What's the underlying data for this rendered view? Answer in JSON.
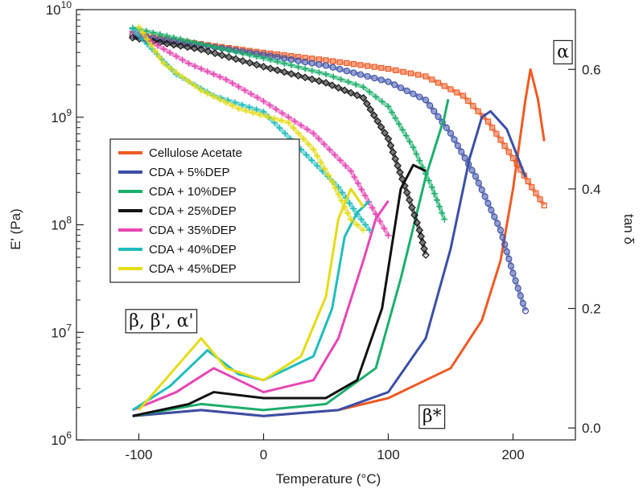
{
  "chart_data": {
    "type": "line",
    "xlabel": "Temperature (°C)",
    "ylabel_left": "E' (Pa)",
    "ylabel_right": "tan δ",
    "xlim": [
      -150,
      250
    ],
    "ylim_left": [
      6,
      10
    ],
    "ylim_right": [
      -0.02,
      0.7
    ],
    "left_scale": "log",
    "grid": false,
    "legend_position": "middle-left",
    "x_ticks": [
      {
        "value": -100,
        "label": "-100"
      },
      {
        "value": 0,
        "label": "0"
      },
      {
        "value": 100,
        "label": "100"
      },
      {
        "value": 200,
        "label": "200"
      }
    ],
    "left_ticks": [
      {
        "exp": 6,
        "base": "10",
        "sup": "6"
      },
      {
        "exp": 7,
        "base": "10",
        "sup": "7"
      },
      {
        "exp": 8,
        "base": "10",
        "sup": "8"
      },
      {
        "exp": 9,
        "base": "10",
        "sup": "9"
      },
      {
        "exp": 10,
        "base": "10",
        "sup": "10"
      }
    ],
    "right_ticks": [
      {
        "value": 0.0,
        "label": "0.0"
      },
      {
        "value": 0.2,
        "label": "0.2"
      },
      {
        "value": 0.4,
        "label": "0.4"
      },
      {
        "value": 0.6,
        "label": "0.6"
      }
    ],
    "series": [
      {
        "name": "Cellulose Acetate",
        "color": "#ee5a24",
        "marker": "square",
        "storage_modulus": [
          [
            -105,
            9.77
          ],
          [
            -50,
            9.68
          ],
          [
            0,
            9.6
          ],
          [
            50,
            9.53
          ],
          [
            100,
            9.45
          ],
          [
            130,
            9.38
          ],
          [
            160,
            9.2
          ],
          [
            180,
            8.96
          ],
          [
            200,
            8.62
          ],
          [
            215,
            8.35
          ],
          [
            225,
            8.18
          ]
        ],
        "tan_delta": [
          [
            -105,
            0.02
          ],
          [
            -50,
            0.03
          ],
          [
            0,
            0.02
          ],
          [
            60,
            0.03
          ],
          [
            100,
            0.05
          ],
          [
            150,
            0.1
          ],
          [
            175,
            0.18
          ],
          [
            190,
            0.28
          ],
          [
            200,
            0.4
          ],
          [
            210,
            0.55
          ],
          [
            214,
            0.6
          ],
          [
            220,
            0.55
          ],
          [
            225,
            0.48
          ]
        ]
      },
      {
        "name": "CDA + 5%DEP",
        "color": "#3a4fa8",
        "marker": "circle",
        "storage_modulus": [
          [
            -105,
            9.76
          ],
          [
            -50,
            9.67
          ],
          [
            0,
            9.58
          ],
          [
            50,
            9.48
          ],
          [
            100,
            9.33
          ],
          [
            130,
            9.16
          ],
          [
            150,
            8.85
          ],
          [
            170,
            8.45
          ],
          [
            190,
            7.95
          ],
          [
            200,
            7.55
          ],
          [
            210,
            7.2
          ]
        ],
        "tan_delta": [
          [
            -105,
            0.02
          ],
          [
            -50,
            0.03
          ],
          [
            0,
            0.02
          ],
          [
            60,
            0.03
          ],
          [
            100,
            0.06
          ],
          [
            130,
            0.15
          ],
          [
            150,
            0.3
          ],
          [
            165,
            0.45
          ],
          [
            175,
            0.52
          ],
          [
            182,
            0.53
          ],
          [
            195,
            0.5
          ],
          [
            210,
            0.42
          ]
        ]
      },
      {
        "name": "CDA + 10%DEP",
        "color": "#1cae6c",
        "marker": "plus",
        "storage_modulus": [
          [
            -105,
            9.83
          ],
          [
            -50,
            9.68
          ],
          [
            0,
            9.55
          ],
          [
            50,
            9.4
          ],
          [
            80,
            9.28
          ],
          [
            100,
            9.1
          ],
          [
            120,
            8.72
          ],
          [
            135,
            8.35
          ],
          [
            145,
            8.05
          ]
        ],
        "tan_delta": [
          [
            -105,
            0.02
          ],
          [
            -50,
            0.04
          ],
          [
            0,
            0.03
          ],
          [
            50,
            0.04
          ],
          [
            90,
            0.1
          ],
          [
            110,
            0.25
          ],
          [
            130,
            0.42
          ],
          [
            145,
            0.52
          ],
          [
            148,
            0.55
          ]
        ]
      },
      {
        "name": "CDA + 25%DEP",
        "color": "#111111",
        "marker": "diamond",
        "storage_modulus": [
          [
            -105,
            9.74
          ],
          [
            -50,
            9.63
          ],
          [
            0,
            9.47
          ],
          [
            50,
            9.32
          ],
          [
            80,
            9.18
          ],
          [
            100,
            8.8
          ],
          [
            115,
            8.3
          ],
          [
            125,
            7.95
          ],
          [
            130,
            7.72
          ]
        ],
        "tan_delta": [
          [
            -105,
            0.02
          ],
          [
            -60,
            0.04
          ],
          [
            -40,
            0.06
          ],
          [
            0,
            0.05
          ],
          [
            50,
            0.05
          ],
          [
            75,
            0.08
          ],
          [
            95,
            0.2
          ],
          [
            110,
            0.4
          ],
          [
            120,
            0.44
          ],
          [
            130,
            0.43
          ]
        ]
      },
      {
        "name": "CDA + 35%DEP",
        "color": "#e646b4",
        "marker": "plus",
        "storage_modulus": [
          [
            -105,
            9.8
          ],
          [
            -60,
            9.5
          ],
          [
            -30,
            9.35
          ],
          [
            0,
            9.15
          ],
          [
            40,
            8.85
          ],
          [
            70,
            8.5
          ],
          [
            90,
            8.1
          ],
          [
            100,
            7.9
          ]
        ],
        "tan_delta": [
          [
            -105,
            0.03
          ],
          [
            -70,
            0.06
          ],
          [
            -40,
            0.1
          ],
          [
            -20,
            0.08
          ],
          [
            0,
            0.06
          ],
          [
            40,
            0.08
          ],
          [
            60,
            0.15
          ],
          [
            80,
            0.28
          ],
          [
            90,
            0.35
          ],
          [
            100,
            0.38
          ]
        ]
      },
      {
        "name": "CDA + 40%DEP",
        "color": "#1fbdbd",
        "marker": "plus",
        "storage_modulus": [
          [
            -105,
            9.82
          ],
          [
            -70,
            9.4
          ],
          [
            -40,
            9.2
          ],
          [
            0,
            9.05
          ],
          [
            30,
            8.7
          ],
          [
            60,
            8.35
          ],
          [
            75,
            8.1
          ],
          [
            85,
            7.95
          ]
        ],
        "tan_delta": [
          [
            -105,
            0.03
          ],
          [
            -75,
            0.07
          ],
          [
            -45,
            0.13
          ],
          [
            -20,
            0.09
          ],
          [
            0,
            0.08
          ],
          [
            40,
            0.12
          ],
          [
            55,
            0.2
          ],
          [
            65,
            0.32
          ],
          [
            75,
            0.36
          ],
          [
            85,
            0.38
          ]
        ]
      },
      {
        "name": "CDA + 45%DEP",
        "color": "#e5db14",
        "marker": "plus",
        "storage_modulus": [
          [
            -100,
            9.84
          ],
          [
            -80,
            9.5
          ],
          [
            -50,
            9.25
          ],
          [
            -20,
            9.08
          ],
          [
            20,
            8.95
          ],
          [
            40,
            8.7
          ],
          [
            55,
            8.4
          ],
          [
            70,
            8.05
          ],
          [
            80,
            7.95
          ]
        ],
        "tan_delta": [
          [
            -100,
            0.03
          ],
          [
            -75,
            0.09
          ],
          [
            -50,
            0.15
          ],
          [
            -30,
            0.1
          ],
          [
            0,
            0.08
          ],
          [
            30,
            0.12
          ],
          [
            50,
            0.22
          ],
          [
            60,
            0.35
          ],
          [
            70,
            0.4
          ],
          [
            80,
            0.37
          ]
        ]
      }
    ],
    "annotations": [
      {
        "text": "α",
        "x": 240,
        "tan": 0.62
      },
      {
        "text": "β, β', α'",
        "x": -82,
        "tan": 0.17
      },
      {
        "text": "β*",
        "x": 135,
        "tan": 0.01
      }
    ]
  }
}
